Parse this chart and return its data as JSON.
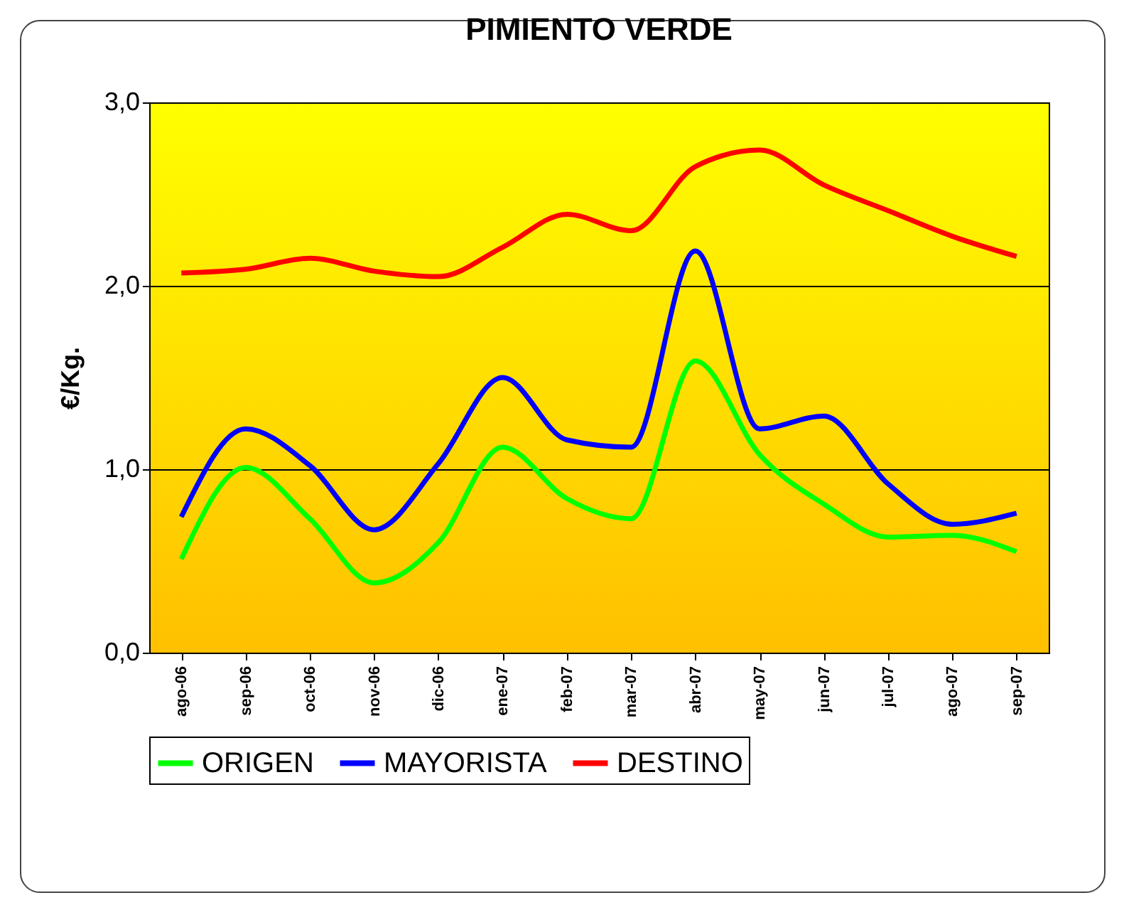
{
  "chart_data": {
    "type": "line",
    "title": "PIMIENTO VERDE",
    "ylabel": "€/Kg.",
    "categories": [
      "ago-06",
      "sep-06",
      "oct-06",
      "nov-06",
      "dic-06",
      "ene-07",
      "feb-07",
      "mar-07",
      "abr-07",
      "may-07",
      "jun-07",
      "jul-07",
      "ago-07",
      "sep-07"
    ],
    "series": [
      {
        "name": "ORIGEN",
        "color": "#00ff00",
        "values": [
          0.51,
          1.01,
          0.73,
          0.38,
          0.6,
          1.12,
          0.84,
          0.73,
          1.59,
          1.08,
          0.81,
          0.63,
          0.64,
          0.55
        ]
      },
      {
        "name": "MAYORISTA",
        "color": "#0000ff",
        "values": [
          0.74,
          1.22,
          1.02,
          0.67,
          1.03,
          1.5,
          1.16,
          1.12,
          2.19,
          1.22,
          1.29,
          0.92,
          0.7,
          0.76
        ]
      },
      {
        "name": "DESTINO",
        "color": "#ff0000",
        "values": [
          2.07,
          2.09,
          2.15,
          2.08,
          2.05,
          2.21,
          2.39,
          2.3,
          2.65,
          2.74,
          2.55,
          2.41,
          2.27,
          2.16
        ]
      }
    ],
    "ylim": [
      0,
      3
    ],
    "yticks": [
      {
        "value": 0,
        "label": "0,0"
      },
      {
        "value": 1,
        "label": "1,0"
      },
      {
        "value": 2,
        "label": "2,0"
      },
      {
        "value": 3,
        "label": "3,0"
      }
    ],
    "grid": "y",
    "legend": "bottom",
    "marker": "none",
    "line_style": "solid"
  }
}
